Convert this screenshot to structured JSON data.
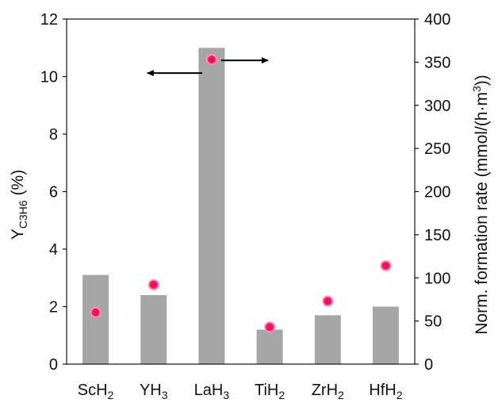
{
  "chart_data": {
    "type": "bar",
    "categories": [
      {
        "base": "ScH",
        "sub": "2"
      },
      {
        "base": "YH",
        "sub": "3"
      },
      {
        "base": "LaH",
        "sub": "3"
      },
      {
        "base": "TiH",
        "sub": "2"
      },
      {
        "base": "ZrH",
        "sub": "2"
      },
      {
        "base": "HfH",
        "sub": "2"
      }
    ],
    "series": [
      {
        "values": [
          3.1,
          2.4,
          11.0,
          1.2,
          1.7,
          2.0
        ],
        "kind": "bar",
        "axis": "left",
        "color": "#a6a6a6"
      },
      {
        "values": [
          60,
          92,
          353,
          43,
          73,
          114
        ],
        "kind": "scatter",
        "axis": "right",
        "color": "#ff0f5b"
      }
    ],
    "y_left": {
      "label_main": "Y",
      "label_sub": "C3H6",
      "label_unit": "(%)",
      "ylim": [
        0,
        12
      ],
      "ticks": [
        "0",
        "2",
        "4",
        "6",
        "8",
        "10",
        "12"
      ]
    },
    "y_right": {
      "label": "Norm. formation rate (mmol/(h·m",
      "label_sup": "3",
      "label_end": "))",
      "ylim": [
        0,
        400
      ],
      "ticks": [
        "0",
        "50",
        "100",
        "150",
        "200",
        "250",
        "300",
        "350",
        "400"
      ]
    },
    "annotations": [
      {
        "type": "arrow",
        "direction": "left",
        "indicates": "left axis"
      },
      {
        "type": "arrow",
        "direction": "right",
        "indicates": "right axis"
      }
    ],
    "grid": false,
    "legend": "none"
  }
}
